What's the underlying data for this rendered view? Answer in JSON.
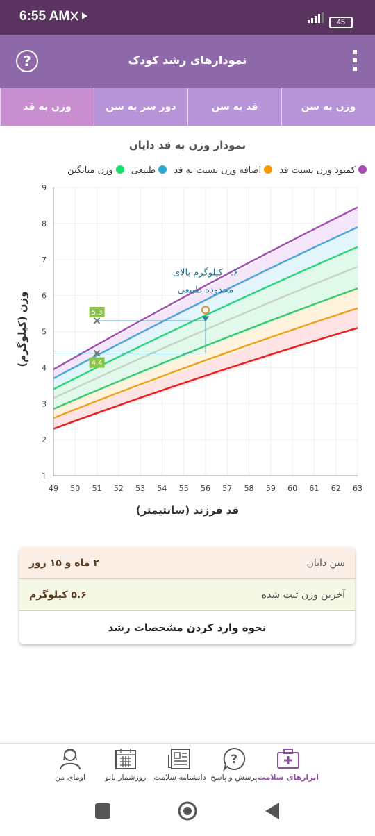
{
  "status": {
    "time": "6:55 AM",
    "battery": "45"
  },
  "appbar": {
    "title": "نمودارهای رشد کودک",
    "help_glyph": "?"
  },
  "tabs": [
    {
      "label": "وزن به سن",
      "active": false
    },
    {
      "label": "قد به سن",
      "active": false
    },
    {
      "label": "دور سر به سن",
      "active": false
    },
    {
      "label": "وزن به قد",
      "active": true
    }
  ],
  "chart_title": "نمودار وزن به قد دایان",
  "legend": [
    {
      "label": "کمبود وزن نسبت قد",
      "color": "#a44fb1"
    },
    {
      "label": "اضافه وزن نسبت به قد",
      "color": "#2fa8ce"
    },
    {
      "label": "طبیعی",
      "color": "#18e16c"
    },
    {
      "label": "وزن میانگین",
      "color": "#cccccc"
    }
  ],
  "legend_swatch": "#ff9800",
  "chart_data": {
    "type": "line",
    "xlabel": "قد فرزند (سانتیمتر)",
    "ylabel": "وزن (کیلوگرم)",
    "xlim": [
      49,
      63
    ],
    "ylim": [
      1,
      9
    ],
    "x_ticks": [
      49,
      50,
      51,
      52,
      53,
      54,
      55,
      56,
      57,
      58,
      59,
      60,
      61,
      62,
      63
    ],
    "y_ticks": [
      1,
      2,
      3,
      4,
      5,
      6,
      7,
      8,
      9
    ],
    "grid": true,
    "x": [
      49,
      63
    ],
    "series": [
      {
        "color": "#a44fb1",
        "values": [
          3.95,
          8.45
        ]
      },
      {
        "color": "#4aa9d6",
        "values": [
          3.7,
          7.9
        ]
      },
      {
        "color": "#2ed67a",
        "values": [
          3.4,
          7.35
        ]
      },
      {
        "color": "#c8d2c8",
        "values": [
          3.15,
          6.8
        ]
      },
      {
        "color": "#3ec96a",
        "values": [
          2.85,
          6.2
        ]
      },
      {
        "color": "#f0a020",
        "values": [
          2.6,
          5.65
        ]
      },
      {
        "color": "#e52222",
        "values": [
          2.3,
          5.1
        ]
      }
    ],
    "markers": [
      {
        "x": 51,
        "y": 5.3,
        "label": "5.3"
      },
      {
        "x": 51,
        "y": 4.4,
        "label": "4.4"
      },
      {
        "x": 56,
        "y": 5.6,
        "label": ""
      }
    ],
    "annotation": {
      "x": 56,
      "line1": "۰.۶ کیلوگرم بالای",
      "line2": "محدوده طبیعی"
    }
  },
  "info": {
    "age_label": "سن دایان",
    "age_value": "۲ ماه و ۱۵ روز",
    "weight_label": "آخرین وزن ثبت شده",
    "weight_value": "۵.۶ کیلوگرم",
    "howto": "نحوه وارد کردن مشخصات رشد"
  },
  "bottom_nav": [
    {
      "label": "ابزارهای سلامت",
      "icon": "first-aid-kit-icon",
      "active": true
    },
    {
      "label": "پرسش و پاسخ",
      "icon": "question-bubble-icon",
      "active": false
    },
    {
      "label": "دانشنامه سلامت",
      "icon": "newspaper-icon",
      "active": false
    },
    {
      "label": "روزشمار بانو",
      "icon": "calendar-icon",
      "active": false
    },
    {
      "label": "اومای من",
      "icon": "user-avatar-icon",
      "active": false
    }
  ]
}
